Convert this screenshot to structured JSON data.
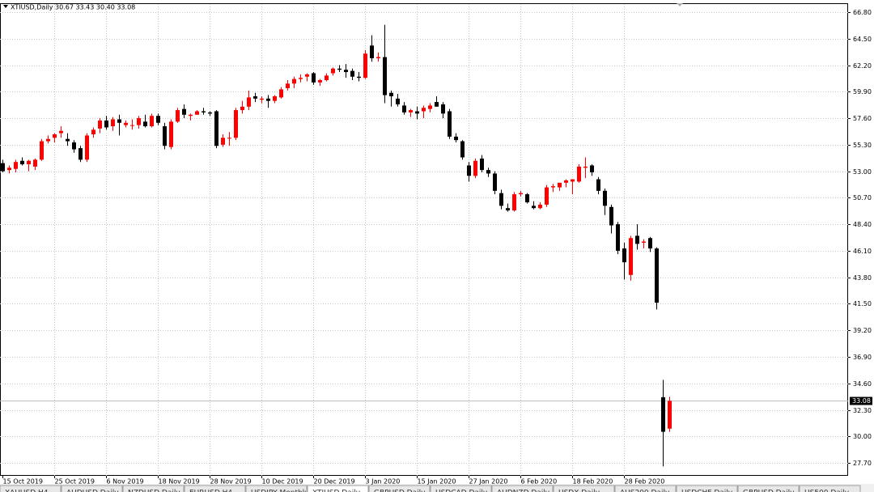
{
  "chart_data": {
    "type": "candlestick",
    "title": "XTIUSD,Daily 30.67 33.43 30.40 33.08",
    "categories": [
      "15 Oct 2019",
      null,
      null,
      null,
      null,
      null,
      null,
      null,
      "25 Oct 2019",
      null,
      null,
      null,
      null,
      null,
      null,
      null,
      "6 Nov 2019",
      null,
      null,
      null,
      null,
      null,
      null,
      null,
      "18 Nov 2019",
      null,
      null,
      null,
      null,
      null,
      null,
      null,
      "28 Nov 2019",
      null,
      null,
      null,
      null,
      null,
      null,
      null,
      "10 Dec 2019",
      null,
      null,
      null,
      null,
      null,
      null,
      null,
      "20 Dec 2019",
      null,
      null,
      null,
      null,
      null,
      null,
      null,
      "3 Jan 2020",
      null,
      null,
      null,
      null,
      null,
      null,
      null,
      "15 Jan 2020",
      null,
      null,
      null,
      null,
      null,
      null,
      null,
      "27 Jan 2020",
      null,
      null,
      null,
      null,
      null,
      null,
      null,
      "6 Feb 2020",
      null,
      null,
      null,
      null,
      null,
      null,
      null,
      "18 Feb 2020",
      null,
      null,
      null,
      null,
      null,
      null,
      null,
      "28 Feb 2020",
      null,
      null,
      null,
      null,
      null,
      null,
      null
    ],
    "open": [
      53.7,
      53.1,
      53.2,
      53.9,
      53.6,
      53.4,
      54.0,
      55.6,
      55.9,
      56.3,
      55.8,
      55.5,
      55.0,
      54.0,
      56.2,
      56.7,
      57.4,
      56.9,
      57.5,
      57.0,
      57.0,
      57.0,
      57.3,
      56.9,
      57.8,
      56.9,
      55.1,
      57.3,
      58.4,
      57.8,
      57.9,
      58.2,
      58.1,
      58.2,
      55.3,
      55.9,
      55.9,
      58.3,
      58.6,
      59.5,
      59.2,
      59.3,
      59.1,
      59.4,
      60.2,
      60.6,
      61.0,
      61.2,
      61.5,
      60.7,
      60.9,
      61.5,
      61.9,
      61.8,
      61.7,
      61.2,
      61.1,
      63.9,
      62.8,
      62.9,
      59.8,
      59.3,
      58.7,
      58.1,
      58.2,
      58.2,
      58.4,
      59.0,
      58.8,
      58.2,
      56.0,
      55.6,
      53.5,
      52.6,
      54.1,
      53.1,
      52.8,
      51.1,
      49.8,
      49.6,
      51.0,
      51.0,
      50.0,
      49.8,
      50.1,
      51.6,
      51.6,
      52.0,
      52.1,
      52.1,
      53.3,
      53.5,
      52.3,
      51.3,
      49.9,
      48.4,
      46.3,
      44.0,
      47.4,
      46.8,
      47.2,
      46.3,
      33.4,
      30.67
    ],
    "high": [
      54.0,
      53.5,
      54.0,
      54.2,
      54.0,
      54.1,
      55.8,
      56.1,
      56.3,
      56.9,
      56.3,
      55.7,
      55.2,
      56.3,
      56.8,
      57.6,
      57.8,
      57.7,
      57.9,
      57.4,
      57.5,
      57.8,
      57.9,
      58.0,
      58.0,
      57.2,
      57.5,
      58.5,
      58.8,
      58.0,
      58.3,
      58.5,
      58.2,
      58.3,
      56.2,
      56.4,
      58.5,
      59.1,
      60.0,
      59.8,
      59.5,
      59.6,
      59.6,
      60.3,
      60.9,
      61.2,
      61.4,
      61.5,
      61.6,
      61.0,
      61.5,
      62.0,
      62.2,
      62.3,
      61.9,
      61.6,
      63.5,
      64.8,
      63.3,
      65.7,
      60.0,
      59.7,
      59.0,
      58.4,
      58.6,
      58.7,
      58.9,
      59.5,
      59.0,
      58.4,
      56.3,
      55.7,
      53.8,
      54.1,
      54.4,
      53.3,
      53.0,
      51.4,
      50.2,
      51.2,
      51.3,
      51.1,
      50.4,
      50.3,
      51.8,
      51.9,
      52.0,
      52.3,
      52.3,
      53.6,
      54.2,
      53.6,
      52.5,
      51.5,
      50.1,
      48.6,
      46.8,
      47.4,
      48.4,
      47.1,
      47.3,
      46.4,
      34.9,
      33.43
    ],
    "low": [
      52.9,
      52.8,
      52.9,
      53.5,
      53.0,
      53.1,
      53.9,
      55.4,
      55.5,
      55.9,
      55.2,
      54.6,
      53.8,
      53.8,
      55.9,
      56.3,
      56.6,
      56.5,
      56.1,
      56.8,
      56.6,
      56.7,
      56.8,
      56.8,
      57.0,
      54.9,
      54.9,
      57.2,
      57.6,
      57.4,
      57.9,
      57.9,
      57.8,
      55.0,
      55.1,
      55.2,
      55.7,
      58.0,
      58.3,
      59.0,
      58.9,
      58.5,
      58.9,
      59.3,
      60.0,
      60.2,
      60.7,
      60.8,
      60.5,
      60.4,
      60.8,
      61.3,
      61.6,
      61.1,
      60.9,
      60.8,
      61.0,
      62.5,
      62.5,
      58.9,
      58.6,
      58.6,
      57.9,
      57.7,
      57.5,
      57.6,
      58.1,
      58.6,
      57.6,
      55.8,
      55.5,
      54.0,
      52.1,
      52.4,
      52.9,
      52.5,
      51.0,
      49.7,
      49.5,
      49.5,
      50.8,
      50.2,
      49.7,
      49.7,
      49.9,
      51.2,
      51.3,
      51.6,
      51.0,
      52.0,
      52.4,
      52.6,
      51.0,
      49.2,
      47.6,
      45.8,
      43.6,
      43.5,
      46.2,
      46.3,
      46.0,
      41.0,
      27.4,
      30.4
    ],
    "close": [
      53.0,
      53.3,
      53.8,
      53.6,
      53.9,
      54.0,
      55.6,
      55.8,
      56.2,
      56.5,
      55.6,
      54.9,
      54.0,
      56.1,
      56.6,
      57.4,
      56.8,
      57.5,
      57.2,
      57.2,
      57.0,
      57.6,
      56.9,
      57.8,
      57.2,
      55.2,
      57.3,
      58.3,
      57.9,
      57.9,
      58.2,
      58.1,
      58.0,
      55.2,
      55.9,
      55.9,
      58.3,
      58.6,
      59.4,
      59.3,
      59.3,
      59.1,
      59.5,
      60.1,
      60.6,
      61.0,
      61.1,
      61.4,
      60.7,
      60.9,
      61.3,
      61.9,
      61.8,
      61.6,
      61.2,
      61.1,
      63.2,
      62.8,
      62.9,
      59.6,
      59.5,
      58.8,
      58.1,
      58.3,
      58.0,
      58.5,
      58.7,
      58.6,
      58.0,
      56.0,
      55.7,
      54.2,
      52.6,
      53.9,
      53.1,
      52.8,
      51.3,
      50.0,
      49.6,
      51.0,
      51.1,
      50.3,
      49.8,
      50.1,
      51.6,
      51.7,
      52.0,
      52.2,
      52.3,
      53.4,
      53.4,
      52.9,
      51.3,
      50.0,
      48.3,
      46.1,
      45.1,
      47.2,
      46.7,
      46.9,
      46.3,
      41.6,
      30.4,
      33.08
    ],
    "up_color": "#ff0000",
    "down_color": "#000000",
    "ylim": [
      26.58,
      67.5
    ],
    "yticks": [
      {
        "value": 66.8,
        "label": "66.80"
      },
      {
        "value": 64.5,
        "label": "64.50"
      },
      {
        "value": 62.2,
        "label": "62.20"
      },
      {
        "value": 59.9,
        "label": "59.90"
      },
      {
        "value": 57.6,
        "label": "57.60"
      },
      {
        "value": 55.3,
        "label": "55.30"
      },
      {
        "value": 53,
        "label": "53.00"
      },
      {
        "value": 50.7,
        "label": "50.70"
      },
      {
        "value": 48.4,
        "label": "48.40"
      },
      {
        "value": 46.1,
        "label": "46.10"
      },
      {
        "value": 43.8,
        "label": "43.80"
      },
      {
        "value": 41.5,
        "label": "41.50"
      },
      {
        "value": 39.2,
        "label": "39.20"
      },
      {
        "value": 36.9,
        "label": "36.90"
      },
      {
        "value": 34.6,
        "label": "34.60"
      },
      {
        "value": 32.3,
        "label": "32.30"
      },
      {
        "value": 30,
        "label": "30.00"
      },
      {
        "value": 27.7,
        "label": "27.70"
      }
    ],
    "grid": true,
    "current_price": {
      "value": 33.08,
      "label": "33.08"
    }
  },
  "tabs": [
    "XAUUSD,H4",
    "AUDUSD,Daily",
    "NZDUSD,Daily",
    "EURUSD,H4",
    "USDJPY,Monthly",
    "XTIUSD,Daily",
    "GBPUSD,Daily",
    "USDCAD,Daily",
    "AUDNZD,Daily",
    "USDX,Daily",
    "AUS200,Daily",
    "USDCHF,Daily",
    "GBPUSD,Daily",
    "US500,Daily"
  ]
}
